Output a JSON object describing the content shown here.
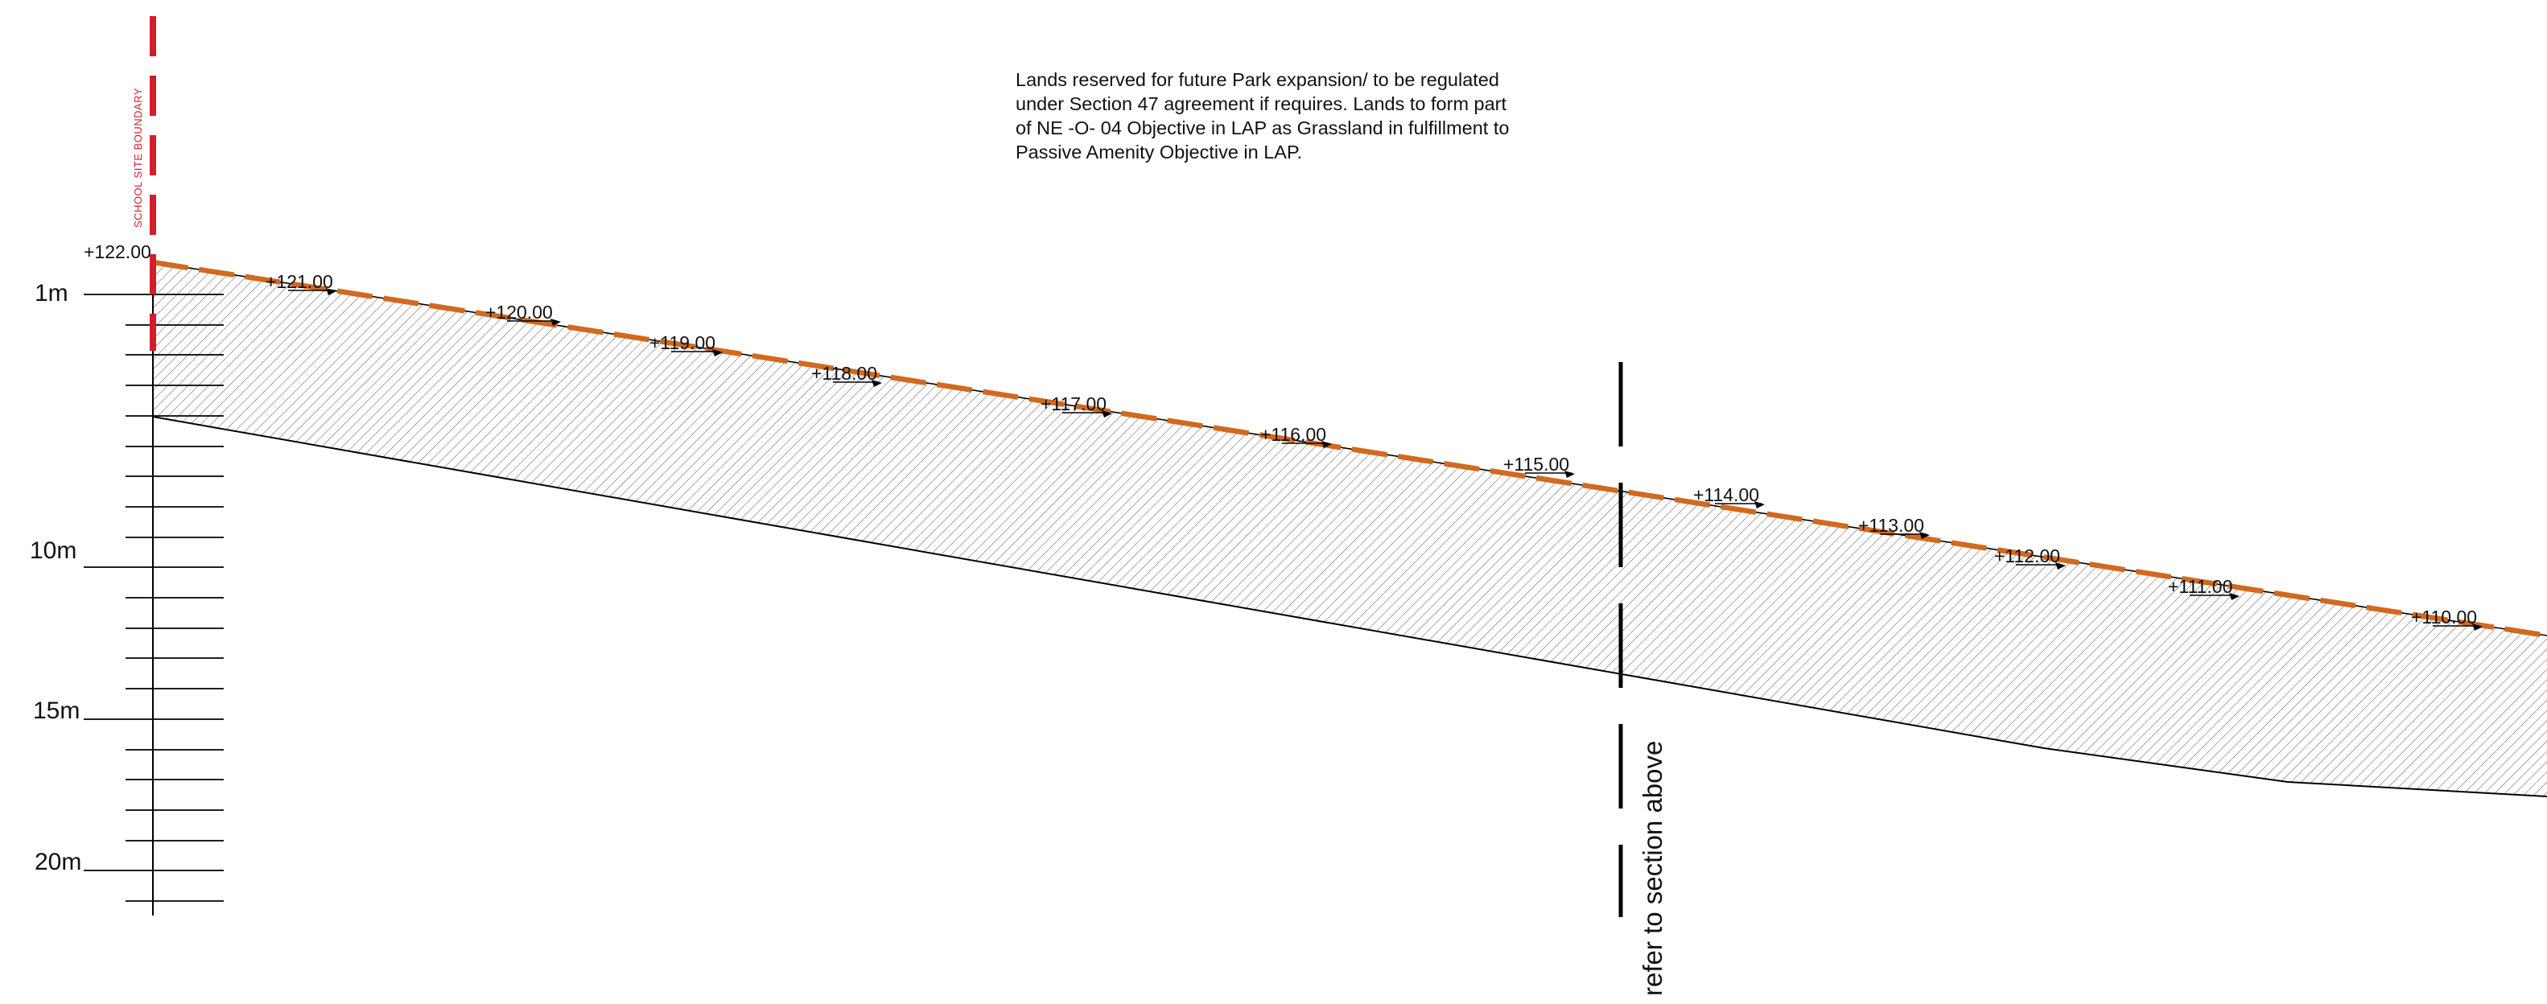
{
  "annotation": {
    "lines": [
      "Lands reserved for future Park expansion/ to be regulated",
      "under Section 47 agreement if requires. Lands to form part",
      "of NE -O- 04 Objective in LAP as Grassland in fulfillment to",
      "Passive Amenity Objective in LAP."
    ]
  },
  "boundary": {
    "label": "SCHOOL SITE BOUNDARY",
    "color": "#d21e2c"
  },
  "ground_color": "#d2691e",
  "scale": {
    "labels": [
      "1m",
      "10m",
      "15m",
      "20m"
    ]
  },
  "levels": [
    "+122.00",
    "+121.00",
    "+120.00",
    "+119.00",
    "+118.00",
    "+117.00",
    "+116.00",
    "+115.00",
    "+114.00",
    "+113.00",
    "+112.00",
    "+111.00",
    "+110.00"
  ],
  "section_ref": {
    "label": "refer to section above"
  }
}
